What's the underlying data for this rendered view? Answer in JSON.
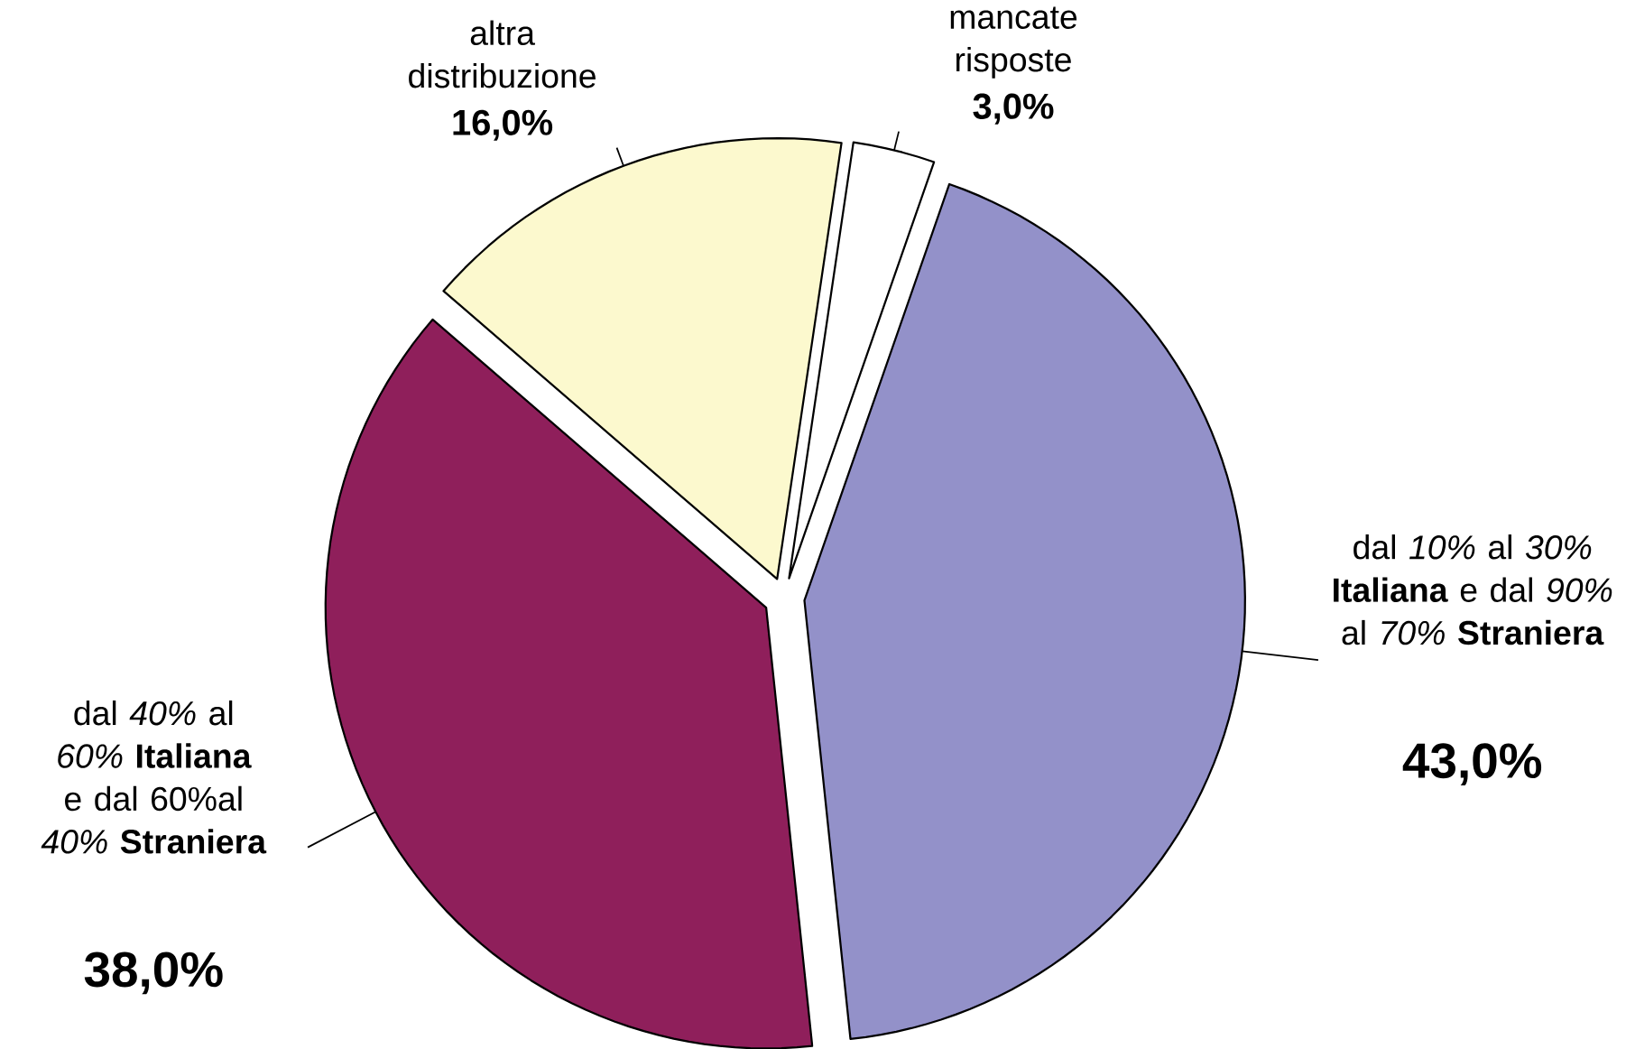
{
  "chart_data": {
    "type": "pie",
    "categories": [
      "dal *10%* al *30%* **Italiana** e dal *90%* al *70%* **Straniera**",
      "dal *40%* al *60%* **Italiana** e dal 60%al *40%* **Straniera**",
      "altra distribuzione",
      "mancate risposte"
    ],
    "values": [
      43.0,
      38.0,
      16.0,
      3.0
    ],
    "value_labels": [
      "43,0%",
      "38,0%",
      "16,0%",
      "3,0%"
    ],
    "colors": [
      "#9391c9",
      "#8f1f5b",
      "#fcf9ce",
      "#ffffff"
    ]
  }
}
